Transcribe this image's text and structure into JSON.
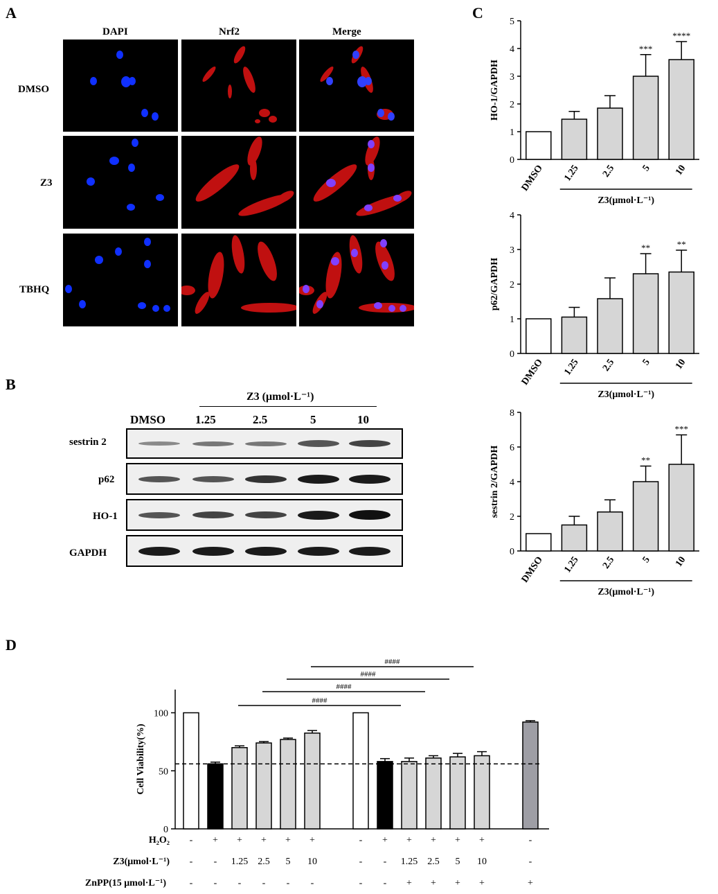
{
  "panel_a": {
    "letter": "A",
    "columns": [
      "DAPI",
      "Nrf2",
      "Merge"
    ],
    "rows": [
      "DMSO",
      "Z3",
      "TBHQ"
    ]
  },
  "panel_b": {
    "letter": "B",
    "group_label": "Z3 (μmol·L⁻¹)",
    "lanes": [
      "DMSO",
      "1.25",
      "2.5",
      "5",
      "10"
    ],
    "proteins": [
      "sestrin 2",
      "p62",
      "HO-1",
      "GAPDH"
    ]
  },
  "panel_c": {
    "letter": "C",
    "group_label": "Z3(μmol·L⁻¹)",
    "categories": [
      "DMSO",
      "1.25",
      "2.5",
      "5",
      "10"
    ]
  },
  "panel_d": {
    "letter": "D",
    "row_labels": [
      "H₂O₂",
      "Z3(μmol·L⁻¹)",
      "ZnPP(15 μmol·L⁻¹)"
    ],
    "h2o2": [
      "-",
      "+",
      "+",
      "+",
      "+",
      "+",
      "-",
      "+",
      "+",
      "+",
      "+",
      "+",
      "-"
    ],
    "z3": [
      "-",
      "-",
      "1.25",
      "2.5",
      "5",
      "10",
      "-",
      "-",
      "1.25",
      "2.5",
      "5",
      "10",
      "-"
    ],
    "znpp": [
      "-",
      "-",
      "-",
      "-",
      "-",
      "-",
      "-",
      "-",
      "+",
      "+",
      "+",
      "+",
      "+"
    ],
    "brackets": [
      "####",
      "####",
      "####",
      "####"
    ]
  },
  "chart_data": [
    {
      "type": "bar",
      "panel": "C-top",
      "categories": [
        "DMSO",
        "1.25",
        "2.5",
        "5",
        "10"
      ],
      "values": [
        1.0,
        1.45,
        1.85,
        3.0,
        3.6
      ],
      "errors": [
        0,
        0.28,
        0.45,
        0.78,
        0.65
      ],
      "significance": [
        "",
        "",
        "",
        "***",
        "****"
      ],
      "ylabel": "HO-1/GAPDH",
      "xlabel": "Z3(μmol·L⁻¹)",
      "ylim": [
        0,
        5
      ],
      "yticks": [
        0,
        1,
        2,
        3,
        4,
        5
      ],
      "colors": [
        "#ffffff",
        "#d6d6d6",
        "#d6d6d6",
        "#d6d6d6",
        "#d6d6d6"
      ]
    },
    {
      "type": "bar",
      "panel": "C-middle",
      "categories": [
        "DMSO",
        "1.25",
        "2.5",
        "5",
        "10"
      ],
      "values": [
        1.0,
        1.05,
        1.58,
        2.3,
        2.35
      ],
      "errors": [
        0,
        0.28,
        0.6,
        0.58,
        0.63
      ],
      "significance": [
        "",
        "",
        "",
        "**",
        "**"
      ],
      "ylabel": "p62/GAPDH",
      "xlabel": "Z3(μmol·L⁻¹)",
      "ylim": [
        0,
        4
      ],
      "yticks": [
        0,
        1,
        2,
        3,
        4
      ],
      "colors": [
        "#ffffff",
        "#d6d6d6",
        "#d6d6d6",
        "#d6d6d6",
        "#d6d6d6"
      ]
    },
    {
      "type": "bar",
      "panel": "C-bottom",
      "categories": [
        "DMSO",
        "1.25",
        "2.5",
        "5",
        "10"
      ],
      "values": [
        1.0,
        1.5,
        2.25,
        4.0,
        5.0
      ],
      "errors": [
        0,
        0.5,
        0.7,
        0.9,
        1.7
      ],
      "significance": [
        "",
        "",
        "",
        "**",
        "***"
      ],
      "ylabel": "sestrin 2/GAPDH",
      "xlabel": "Z3(μmol·L⁻¹)",
      "ylim": [
        0,
        8
      ],
      "yticks": [
        0,
        2,
        4,
        6,
        8
      ],
      "colors": [
        "#ffffff",
        "#d6d6d6",
        "#d6d6d6",
        "#d6d6d6",
        "#d6d6d6"
      ]
    },
    {
      "type": "bar",
      "panel": "D",
      "values": [
        100,
        56,
        70,
        74,
        77,
        82.5,
        100,
        58,
        58,
        61,
        62,
        63,
        92
      ],
      "errors": [
        0,
        1.5,
        1.5,
        1.2,
        1.2,
        2.2,
        0,
        2.5,
        3,
        2,
        3,
        3.5,
        1.2
      ],
      "colors": [
        "#ffffff",
        "#000000",
        "#d6d6d6",
        "#d6d6d6",
        "#d6d6d6",
        "#d6d6d6",
        "#ffffff",
        "#000000",
        "#d6d6d6",
        "#d6d6d6",
        "#d6d6d6",
        "#d6d6d6",
        "#9e9ea5"
      ],
      "ylabel": "Cell Viability(%)",
      "ylim": [
        0,
        120
      ],
      "yticks": [
        0,
        50,
        100
      ],
      "reference_line": 56
    }
  ]
}
